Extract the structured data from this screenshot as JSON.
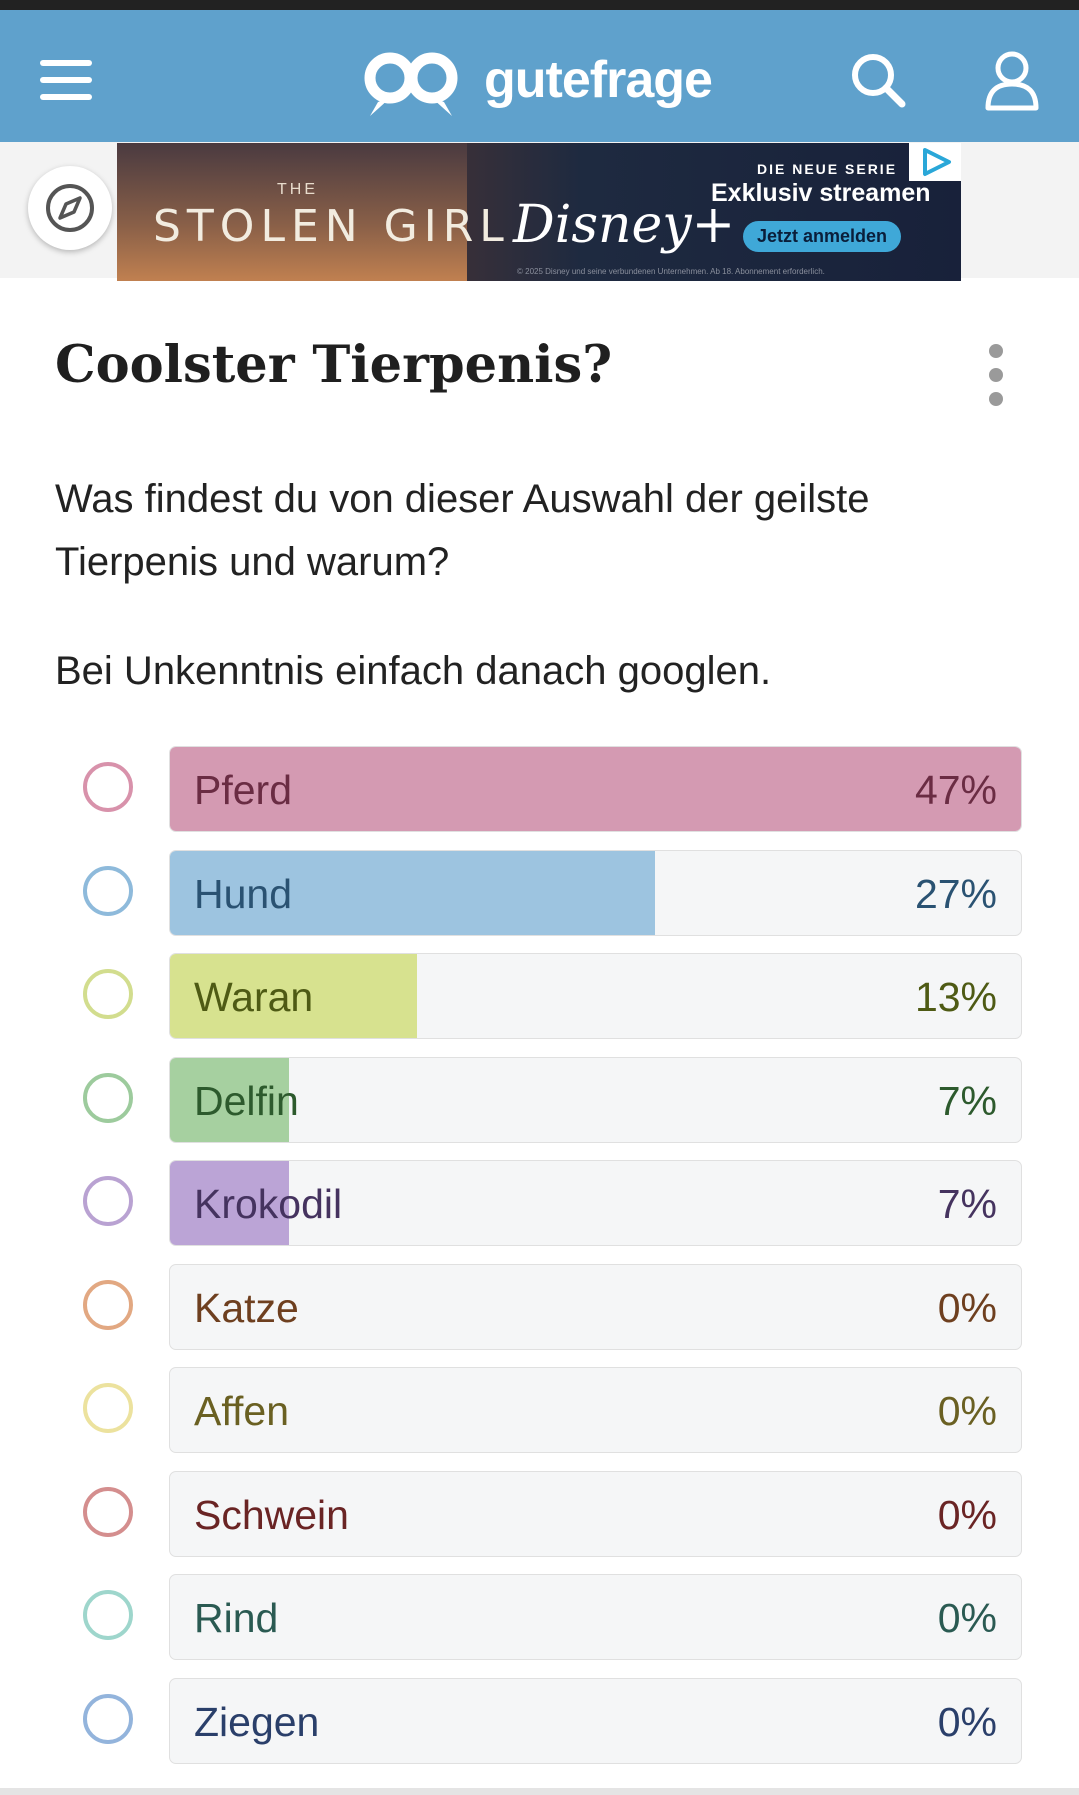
{
  "header": {
    "logo_text": "gutefrage",
    "colors": {
      "bar": "#5fa1cc",
      "icon": "#ffffff"
    },
    "icons": [
      "menu-icon",
      "logo-mark-icon",
      "search-icon",
      "user-icon"
    ]
  },
  "ad": {
    "left_small": "THE",
    "left_title": "STOLEN GIRL",
    "brand": "Disney+",
    "small_caption": "DIE NEUE SERIE",
    "headline": "Exklusiv streamen",
    "cta": "Jetzt anmelden",
    "fineprint": "© 2025 Disney und seine verbundenen Unternehmen. Ab 18. Abonnement erforderlich."
  },
  "compass": {
    "icon": "compass-icon"
  },
  "question": {
    "title": "Coolster Tierpenis?",
    "body": "Was findest du von dieser Auswahl der geilste Tierpenis und warum?",
    "note": "Bei Unkenntnis einfach danach googlen."
  },
  "poll": {
    "options": [
      {
        "label": "Pferd",
        "percent_text": "47%",
        "share": 1.0,
        "ring": "#d892ab",
        "fill": "#d49ab2",
        "text": "#6a2c43"
      },
      {
        "label": "Hund",
        "percent_text": "27%",
        "share": 0.57,
        "ring": "#8ebadb",
        "fill": "#9dc4e0",
        "text": "#2a5272"
      },
      {
        "label": "Waran",
        "percent_text": "13%",
        "share": 0.29,
        "ring": "#d2dd8e",
        "fill": "#d7e28f",
        "text": "#4e5a14"
      },
      {
        "label": "Delfin",
        "percent_text": "7%",
        "share": 0.14,
        "ring": "#9dcb9d",
        "fill": "#a6d0a0",
        "text": "#2d5a2d"
      },
      {
        "label": "Krokodil",
        "percent_text": "7%",
        "share": 0.14,
        "ring": "#b9a2d2",
        "fill": "#bba4d6",
        "text": "#45335f"
      },
      {
        "label": "Katze",
        "percent_text": "0%",
        "share": 0,
        "ring": "#e2a882",
        "fill": "#e2a882",
        "text": "#6e3f1f"
      },
      {
        "label": "Affen",
        "percent_text": "0%",
        "share": 0,
        "ring": "#ece29e",
        "fill": "#ece29e",
        "text": "#6a6022"
      },
      {
        "label": "Schwein",
        "percent_text": "0%",
        "share": 0,
        "ring": "#d48e8e",
        "fill": "#d48e8e",
        "text": "#6a2424"
      },
      {
        "label": "Rind",
        "percent_text": "0%",
        "share": 0,
        "ring": "#9ed6cc",
        "fill": "#9ed6cc",
        "text": "#2a5a52"
      },
      {
        "label": "Ziegen",
        "percent_text": "0%",
        "share": 0,
        "ring": "#93b4dc",
        "fill": "#93b4dc",
        "text": "#2a3f6a"
      }
    ]
  }
}
